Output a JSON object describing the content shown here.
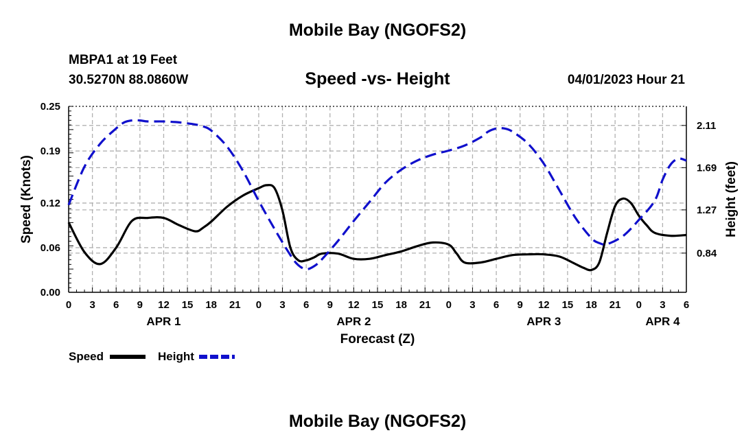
{
  "page": {
    "top_title": "Mobile Bay (NGOFS2)",
    "station": "MBPA1 at 19 Feet",
    "coords": "30.5270N  88.0860W",
    "subtitle": "Speed -vs- Height",
    "datetime": "04/01/2023 Hour 21",
    "bottom_title": "Mobile Bay (NGOFS2)"
  },
  "chart_data": {
    "type": "line",
    "title": "Speed -vs- Height",
    "xlabel": "Forecast (Z)",
    "ylabel": "Speed (Knots)",
    "y2label": "Height (feet)",
    "xlim": [
      0,
      78
    ],
    "ylim": [
      0,
      0.25
    ],
    "y2lim": [
      0.45,
      2.3
    ],
    "grid": true,
    "x_ticks": [
      0,
      3,
      6,
      9,
      12,
      15,
      18,
      21,
      24,
      27,
      30,
      33,
      36,
      39,
      42,
      45,
      48,
      51,
      54,
      57,
      60,
      63,
      66,
      69,
      72,
      75,
      78
    ],
    "x_tick_labels": [
      "0",
      "3",
      "6",
      "9",
      "12",
      "15",
      "18",
      "21",
      "0",
      "3",
      "6",
      "9",
      "12",
      "15",
      "18",
      "21",
      "0",
      "3",
      "6",
      "9",
      "12",
      "15",
      "18",
      "21",
      "0",
      "3",
      "6"
    ],
    "day_labels": [
      {
        "label": "APR 1",
        "x": 12
      },
      {
        "label": "APR 2",
        "x": 36
      },
      {
        "label": "APR 3",
        "x": 60
      },
      {
        "label": "APR 4",
        "x": 75
      }
    ],
    "y_ticks": [
      0.0,
      0.06,
      0.12,
      0.19,
      0.25
    ],
    "y_tick_labels": [
      "0.00",
      "0.06",
      "0.12",
      "0.19",
      "0.25"
    ],
    "y2_ticks": [
      0.84,
      1.27,
      1.69,
      2.11
    ],
    "y2_tick_labels": [
      "0.84",
      "1.27",
      "1.69",
      "2.11"
    ],
    "legend": [
      {
        "name": "Speed",
        "color": "#000000",
        "style": "solid"
      },
      {
        "name": "Height",
        "color": "#1010cc",
        "style": "dashed"
      }
    ],
    "series": [
      {
        "name": "Speed",
        "axis": "left",
        "color": "#000000",
        "x": [
          0,
          2,
          4,
          6,
          8,
          10,
          12,
          14,
          16,
          17,
          18,
          20,
          22,
          24,
          25,
          26,
          27,
          28,
          29,
          30,
          31,
          32,
          34,
          36,
          38,
          40,
          42,
          44,
          46,
          48,
          49,
          50,
          52,
          54,
          56,
          58,
          60,
          62,
          64,
          65,
          66,
          67,
          68,
          69,
          70,
          71,
          72,
          73,
          74,
          76,
          78
        ],
        "y": [
          0.094,
          0.054,
          0.038,
          0.06,
          0.096,
          0.1,
          0.1,
          0.09,
          0.082,
          0.087,
          0.095,
          0.115,
          0.13,
          0.14,
          0.144,
          0.14,
          0.11,
          0.06,
          0.043,
          0.043,
          0.047,
          0.052,
          0.052,
          0.045,
          0.045,
          0.05,
          0.055,
          0.062,
          0.067,
          0.064,
          0.052,
          0.04,
          0.04,
          0.045,
          0.05,
          0.051,
          0.051,
          0.048,
          0.038,
          0.033,
          0.03,
          0.04,
          0.08,
          0.116,
          0.126,
          0.12,
          0.103,
          0.09,
          0.08,
          0.076,
          0.077
        ]
      },
      {
        "name": "Height",
        "axis": "right",
        "color": "#1010cc",
        "x": [
          0,
          2,
          4,
          6,
          7,
          8,
          9,
          10,
          12,
          14,
          16,
          17,
          18,
          20,
          22,
          24,
          26,
          28,
          29,
          30,
          31,
          32,
          34,
          36,
          38,
          40,
          42,
          44,
          46,
          48,
          50,
          52,
          53,
          54,
          55,
          56,
          58,
          60,
          62,
          64,
          66,
          67,
          68,
          70,
          72,
          74,
          75,
          76,
          77,
          78
        ],
        "y": [
          1.32,
          1.7,
          1.93,
          2.08,
          2.14,
          2.16,
          2.16,
          2.15,
          2.15,
          2.14,
          2.12,
          2.1,
          2.06,
          1.9,
          1.66,
          1.36,
          1.08,
          0.82,
          0.72,
          0.68,
          0.71,
          0.78,
          0.96,
          1.16,
          1.35,
          1.54,
          1.67,
          1.76,
          1.82,
          1.86,
          1.91,
          1.99,
          2.05,
          2.08,
          2.08,
          2.05,
          1.93,
          1.73,
          1.46,
          1.19,
          0.99,
          0.94,
          0.93,
          1.01,
          1.17,
          1.36,
          1.57,
          1.72,
          1.78,
          1.76
        ]
      }
    ]
  }
}
